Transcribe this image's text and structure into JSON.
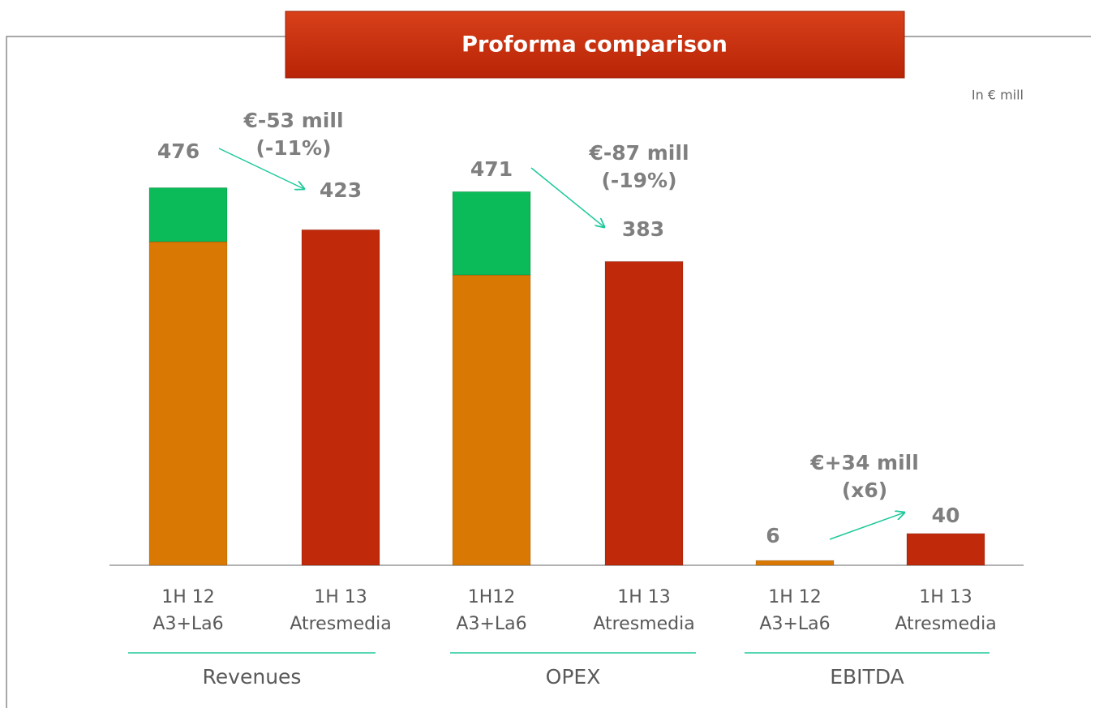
{
  "chart_data": {
    "type": "stacked-bar",
    "title": "Proforma comparison",
    "unit_note": "In € mill",
    "categories": [
      [
        "1H 12",
        "A3+La6"
      ],
      [
        "1H 13",
        "Atresmedia"
      ],
      [
        "1H12",
        "A3+La6"
      ],
      [
        "1H 13",
        "Atresmedia"
      ],
      [
        "1H 12",
        "A3+La6"
      ],
      [
        "1H 13",
        "Atresmedia"
      ]
    ],
    "groups": [
      "Revenues",
      "OPEX",
      "EBITDA"
    ],
    "series": [
      {
        "color": "#d97904",
        "values": [
          408,
          null,
          366,
          null,
          6,
          null
        ]
      },
      {
        "color": "#0bba58",
        "values": [
          68,
          null,
          105,
          null,
          null,
          null
        ]
      },
      {
        "color": "#c0290a",
        "values": [
          null,
          423,
          null,
          383,
          null,
          40
        ]
      }
    ],
    "totals": [
      476,
      423,
      471,
      383,
      6,
      40
    ],
    "annotations": [
      [
        "€-53 mill",
        "(-11%)"
      ],
      [
        "€-87 mill",
        "(-19%)"
      ],
      [
        "€+34 mill",
        "(x6)"
      ]
    ],
    "ylim": [
      0,
      500
    ]
  }
}
